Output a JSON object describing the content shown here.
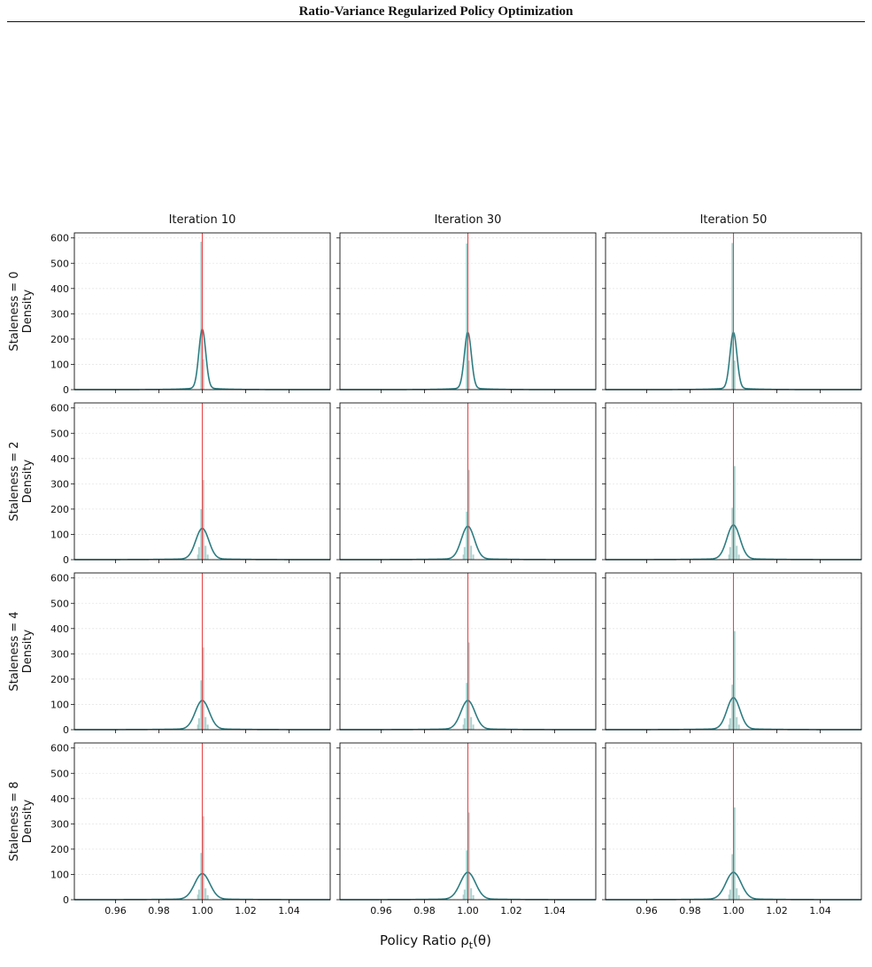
{
  "header": {
    "title": "Ratio-Variance Regularized Policy Optimization"
  },
  "colors": {
    "kde": "#2e7d82",
    "kde_dark": "#2a6068",
    "hist": "#9cc9c5",
    "reference_line": "#e8474a",
    "grid": "#e6e6e6"
  },
  "figure": {
    "xlabel": "Policy Ratio ρ",
    "xlabel_sub": "t",
    "xlabel_tail": "(θ)",
    "ylabel": "Density",
    "column_titles": [
      "Iteration 10",
      "Iteration 30",
      "Iteration 50"
    ],
    "row_labels": [
      "Staleness = 0",
      "Staleness = 2",
      "Staleness = 4",
      "Staleness = 8"
    ]
  },
  "chart_data": {
    "type": "histogram+kde",
    "xlim": [
      0.941,
      1.059
    ],
    "ylim": [
      0,
      620
    ],
    "xticks": [
      0.96,
      0.98,
      1.0,
      1.02,
      1.04
    ],
    "xtick_labels": [
      "0.96",
      "0.98",
      "1.00",
      "1.02",
      "1.04"
    ],
    "yticks": [
      0,
      100,
      200,
      300,
      400,
      500,
      600
    ],
    "ytick_labels": [
      "0",
      "100",
      "200",
      "300",
      "400",
      "500",
      "600"
    ],
    "reference_line_x": 1.0,
    "grid": "horizontal dotted",
    "panels": [
      {
        "row": 0,
        "col": 0,
        "kde_peak": 232,
        "kde_sigma": 0.0016,
        "hist": [
          [
            0.9995,
            585
          ],
          [
            1.0005,
            120
          ]
        ]
      },
      {
        "row": 0,
        "col": 1,
        "kde_peak": 220,
        "kde_sigma": 0.0016,
        "hist": [
          [
            0.9995,
            578
          ],
          [
            1.0005,
            115
          ]
        ]
      },
      {
        "row": 0,
        "col": 2,
        "kde_peak": 220,
        "kde_sigma": 0.0016,
        "hist": [
          [
            0.9995,
            580
          ],
          [
            1.0005,
            115
          ]
        ]
      },
      {
        "row": 1,
        "col": 0,
        "kde_peak": 120,
        "kde_sigma": 0.003,
        "hist": [
          [
            0.998,
            20
          ],
          [
            0.9985,
            50
          ],
          [
            0.9995,
            200
          ],
          [
            1.0005,
            315
          ],
          [
            1.0015,
            55
          ],
          [
            1.0025,
            20
          ]
        ]
      },
      {
        "row": 1,
        "col": 1,
        "kde_peak": 128,
        "kde_sigma": 0.003,
        "hist": [
          [
            0.998,
            20
          ],
          [
            0.9985,
            50
          ],
          [
            0.9995,
            190
          ],
          [
            1.0005,
            355
          ],
          [
            1.0015,
            55
          ],
          [
            1.0025,
            20
          ]
        ]
      },
      {
        "row": 1,
        "col": 2,
        "kde_peak": 133,
        "kde_sigma": 0.003,
        "hist": [
          [
            0.998,
            20
          ],
          [
            0.9985,
            50
          ],
          [
            0.9995,
            205
          ],
          [
            1.0005,
            370
          ],
          [
            1.0015,
            55
          ],
          [
            1.0025,
            20
          ]
        ]
      },
      {
        "row": 2,
        "col": 0,
        "kde_peak": 112,
        "kde_sigma": 0.0032,
        "hist": [
          [
            0.998,
            20
          ],
          [
            0.9985,
            45
          ],
          [
            0.9995,
            195
          ],
          [
            1.0005,
            325
          ],
          [
            1.0015,
            50
          ],
          [
            1.0025,
            20
          ]
        ]
      },
      {
        "row": 2,
        "col": 1,
        "kde_peak": 112,
        "kde_sigma": 0.0032,
        "hist": [
          [
            0.998,
            20
          ],
          [
            0.9985,
            45
          ],
          [
            0.9995,
            185
          ],
          [
            1.0005,
            345
          ],
          [
            1.0015,
            50
          ],
          [
            1.0025,
            20
          ]
        ]
      },
      {
        "row": 2,
        "col": 2,
        "kde_peak": 123,
        "kde_sigma": 0.003,
        "hist": [
          [
            0.998,
            20
          ],
          [
            0.9985,
            45
          ],
          [
            0.9995,
            178
          ],
          [
            1.0005,
            390
          ],
          [
            1.0015,
            50
          ],
          [
            1.0025,
            20
          ]
        ]
      },
      {
        "row": 3,
        "col": 0,
        "kde_peak": 100,
        "kde_sigma": 0.0035,
        "hist": [
          [
            0.998,
            20
          ],
          [
            0.9985,
            40
          ],
          [
            0.9995,
            185
          ],
          [
            1.0005,
            330
          ],
          [
            1.0015,
            45
          ],
          [
            1.0025,
            18
          ]
        ]
      },
      {
        "row": 3,
        "col": 1,
        "kde_peak": 105,
        "kde_sigma": 0.0035,
        "hist": [
          [
            0.998,
            20
          ],
          [
            0.9985,
            40
          ],
          [
            0.9995,
            195
          ],
          [
            1.0005,
            345
          ],
          [
            1.0015,
            45
          ],
          [
            1.0025,
            18
          ]
        ]
      },
      {
        "row": 3,
        "col": 2,
        "kde_peak": 105,
        "kde_sigma": 0.0035,
        "hist": [
          [
            0.998,
            20
          ],
          [
            0.9985,
            40
          ],
          [
            0.9995,
            180
          ],
          [
            1.0005,
            365
          ],
          [
            1.0015,
            45
          ],
          [
            1.0025,
            18
          ]
        ]
      }
    ]
  }
}
